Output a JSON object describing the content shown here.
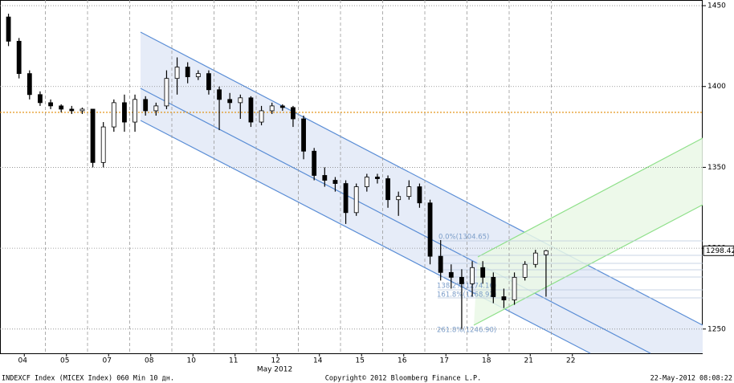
{
  "chart_data": {
    "type": "candlestick",
    "categories": [
      "04",
      "05",
      "07",
      "08",
      "10",
      "11",
      "12",
      "14",
      "15",
      "16",
      "17",
      "18",
      "21",
      "22"
    ],
    "x_label": "May 2012",
    "open": [
      1443,
      1428,
      1408,
      1395,
      1390,
      1388,
      1386,
      1385,
      1386,
      1353,
      1375,
      1390,
      1378,
      1392,
      1385,
      1388,
      1405,
      1412,
      1406,
      1408,
      1398,
      1392,
      1390,
      1393,
      1378,
      1385,
      1388,
      1387,
      1380,
      1360,
      1345,
      1342,
      1340,
      1322,
      1338,
      1344,
      1343,
      1330,
      1332,
      1338,
      1328,
      1295,
      1285,
      1282,
      1278,
      1288,
      1282,
      1270,
      1268,
      1282,
      1290,
      1296
    ],
    "high": [
      1445,
      1430,
      1410,
      1397,
      1392,
      1389,
      1388,
      1387,
      1386,
      1378,
      1392,
      1395,
      1395,
      1394,
      1390,
      1410,
      1418,
      1415,
      1410,
      1410,
      1400,
      1396,
      1395,
      1394,
      1388,
      1390,
      1389,
      1388,
      1382,
      1362,
      1350,
      1344,
      1342,
      1340,
      1346,
      1346,
      1345,
      1335,
      1342,
      1340,
      1330,
      1305,
      1290,
      1287,
      1292,
      1292,
      1285,
      1275,
      1285,
      1292,
      1299,
      1299
    ],
    "low": [
      1425,
      1405,
      1392,
      1388,
      1386,
      1384,
      1383,
      1383,
      1350,
      1350,
      1372,
      1372,
      1372,
      1382,
      1382,
      1386,
      1395,
      1402,
      1404,
      1395,
      1373,
      1386,
      1380,
      1375,
      1376,
      1383,
      1385,
      1375,
      1355,
      1342,
      1338,
      1335,
      1315,
      1320,
      1335,
      1340,
      1325,
      1320,
      1330,
      1325,
      1290,
      1280,
      1275,
      1250,
      1270,
      1278,
      1266,
      1263,
      1265,
      1280,
      1288,
      1270
    ],
    "close": [
      1428,
      1408,
      1395,
      1390,
      1388,
      1386,
      1385,
      1386,
      1353,
      1375,
      1390,
      1378,
      1392,
      1385,
      1388,
      1405,
      1412,
      1406,
      1408,
      1398,
      1392,
      1390,
      1393,
      1378,
      1385,
      1388,
      1387,
      1380,
      1360,
      1345,
      1342,
      1340,
      1322,
      1338,
      1344,
      1343,
      1330,
      1332,
      1338,
      1328,
      1295,
      1285,
      1282,
      1278,
      1288,
      1282,
      1270,
      1268,
      1282,
      1290,
      1297,
      1298.42
    ],
    "color": "#000000",
    "ylim": [
      1235,
      1453.5
    ],
    "yticks": [
      1250,
      1300,
      1350,
      1400,
      1450
    ],
    "grid": true,
    "last_value": 1298.42,
    "reference_line": 1384,
    "fibonacci": [
      "0.0%(1304.65)",
      "138.2%(1274.16)",
      "161.8%(1268.92)",
      "261.8%(1246.90)"
    ],
    "footer_left": "INDEXCF Index (MICEX Index) 060 Min 10 дн.",
    "footer_center": "Copyright© 2012 Bloomberg Finance L.P.",
    "footer_right": "22-May-2012 08:08:22"
  }
}
